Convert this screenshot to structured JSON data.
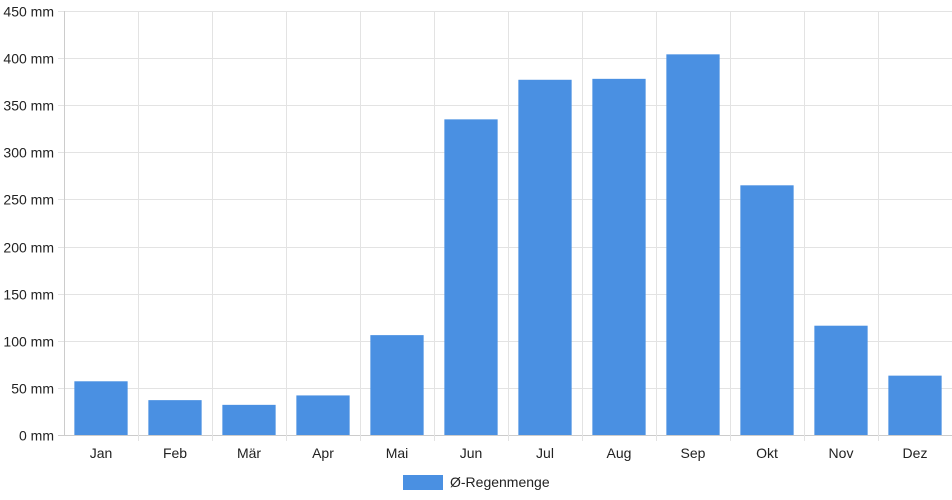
{
  "chart_data": {
    "type": "bar",
    "categories": [
      "Jan",
      "Feb",
      "Mär",
      "Apr",
      "Mai",
      "Jun",
      "Jul",
      "Aug",
      "Sep",
      "Okt",
      "Nov",
      "Dez"
    ],
    "series": [
      {
        "name": "Ø-Regenmenge",
        "values": [
          57,
          37,
          32,
          42,
          106,
          335,
          377,
          378,
          404,
          265,
          116,
          63
        ]
      }
    ],
    "ylim": [
      0,
      450
    ],
    "yticks": [
      0,
      50,
      100,
      150,
      200,
      250,
      300,
      350,
      400,
      450
    ],
    "y_unit": "mm",
    "grid": true,
    "legend_position": "bottom",
    "colors": {
      "bar": "#4a90e2",
      "grid": "#e3e3e3",
      "axis": "#cccccc"
    }
  }
}
